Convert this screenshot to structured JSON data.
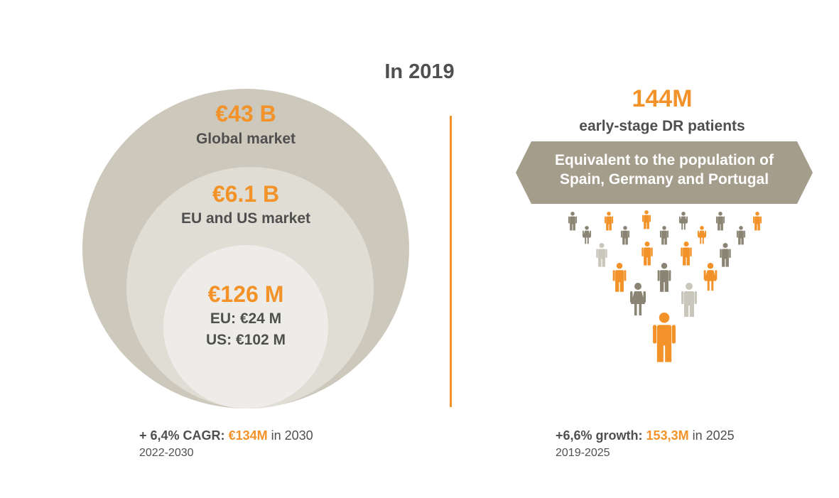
{
  "title": "In 2019",
  "market": {
    "global": {
      "value": "€43 B",
      "label": "Global market"
    },
    "eu_us": {
      "value": "€6.1 B",
      "label": "EU and US market"
    },
    "inner": {
      "value": "€126 M",
      "eu": "EU: €24 M",
      "us": "US: €102 M"
    }
  },
  "patients": {
    "value": "144M",
    "label": "early-stage DR patients",
    "banner_line1": "Equivalent to the population of",
    "banner_line2": "Spain, Germany and Portugal"
  },
  "footer_left": {
    "prefix": "+ 6,4% CAGR:",
    "highlight": "€134M",
    "suffix": "in 2030",
    "period": "2022-2030"
  },
  "footer_right": {
    "prefix": "+6,6% growth:",
    "highlight": "153,3M",
    "suffix": "in 2025",
    "period": "2019-2025"
  },
  "colors": {
    "accent": "#f29228",
    "text": "#4f4f4f",
    "circle_outer": "#ccc8bb",
    "circle_mid": "#e0ddd5",
    "circle_inner": "#eeece8",
    "banner": "#a59d8b",
    "person_gray": "#8a8474",
    "person_light": "#c9c6bc"
  },
  "people_icons": [
    {
      "icon": "male-person-icon",
      "color": "gray"
    },
    {
      "icon": "male-person-icon",
      "color": "orange"
    },
    {
      "icon": "male-person-icon",
      "color": "orange"
    },
    {
      "icon": "female-person-icon",
      "color": "gray"
    },
    {
      "icon": "male-person-icon",
      "color": "gray"
    },
    {
      "icon": "male-person-icon",
      "color": "orange"
    },
    {
      "icon": "female-person-icon",
      "color": "gray"
    },
    {
      "icon": "male-person-icon",
      "color": "gray"
    },
    {
      "icon": "male-person-icon",
      "color": "gray"
    },
    {
      "icon": "female-person-icon",
      "color": "orange"
    },
    {
      "icon": "male-person-icon",
      "color": "gray"
    },
    {
      "icon": "male-person-icon",
      "color": "light"
    },
    {
      "icon": "male-person-icon",
      "color": "orange"
    },
    {
      "icon": "male-person-icon",
      "color": "orange"
    },
    {
      "icon": "male-person-icon",
      "color": "gray"
    },
    {
      "icon": "male-person-icon",
      "color": "orange"
    },
    {
      "icon": "male-person-icon",
      "color": "gray"
    },
    {
      "icon": "female-person-icon",
      "color": "orange"
    },
    {
      "icon": "female-person-icon",
      "color": "gray"
    },
    {
      "icon": "male-person-icon",
      "color": "light"
    },
    {
      "icon": "male-person-icon",
      "color": "orange"
    }
  ]
}
